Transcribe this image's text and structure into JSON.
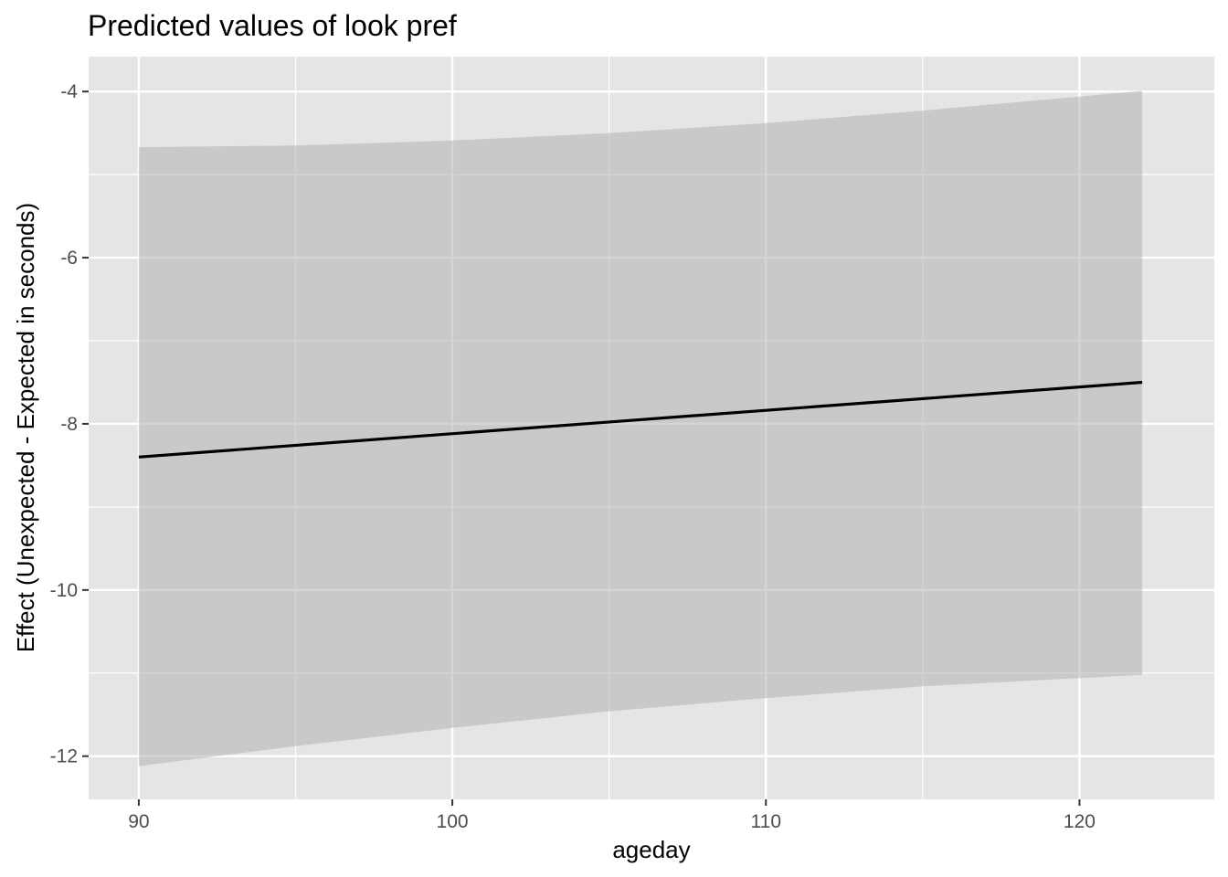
{
  "chart_data": {
    "type": "line",
    "title": "Predicted values of look pref",
    "xlabel": "ageday",
    "ylabel": "Effect (Unexpected - Expected in seconds)",
    "xlim": [
      88.4,
      124.3
    ],
    "ylim": [
      -12.52,
      -3.58
    ],
    "x_ticks": [
      90,
      100,
      110,
      120
    ],
    "x_tick_labels": [
      "90",
      "100",
      "110",
      "120"
    ],
    "y_ticks": [
      -12,
      -10,
      -8,
      -6,
      -4
    ],
    "y_tick_labels": [
      "-12",
      "-10",
      "-8",
      "-6",
      "-4"
    ],
    "grid": true,
    "series": [
      {
        "x": [
          90,
          122
        ],
        "y": [
          -8.4,
          -7.5
        ]
      }
    ],
    "ribbon": {
      "x": [
        90,
        95,
        100,
        105,
        110,
        115,
        120,
        122
      ],
      "lower": [
        -12.12,
        -11.88,
        -11.66,
        -11.46,
        -11.3,
        -11.16,
        -11.06,
        -11.02
      ],
      "upper": [
        -4.67,
        -4.65,
        -4.59,
        -4.5,
        -4.38,
        -4.23,
        -4.06,
        -3.99
      ]
    },
    "colors": {
      "panel_background": "#e5e5e5",
      "grid": "#ffffff",
      "ribbon": "#b3b3b3",
      "line": "#000000",
      "tick_text": "#4d4d4d"
    }
  }
}
